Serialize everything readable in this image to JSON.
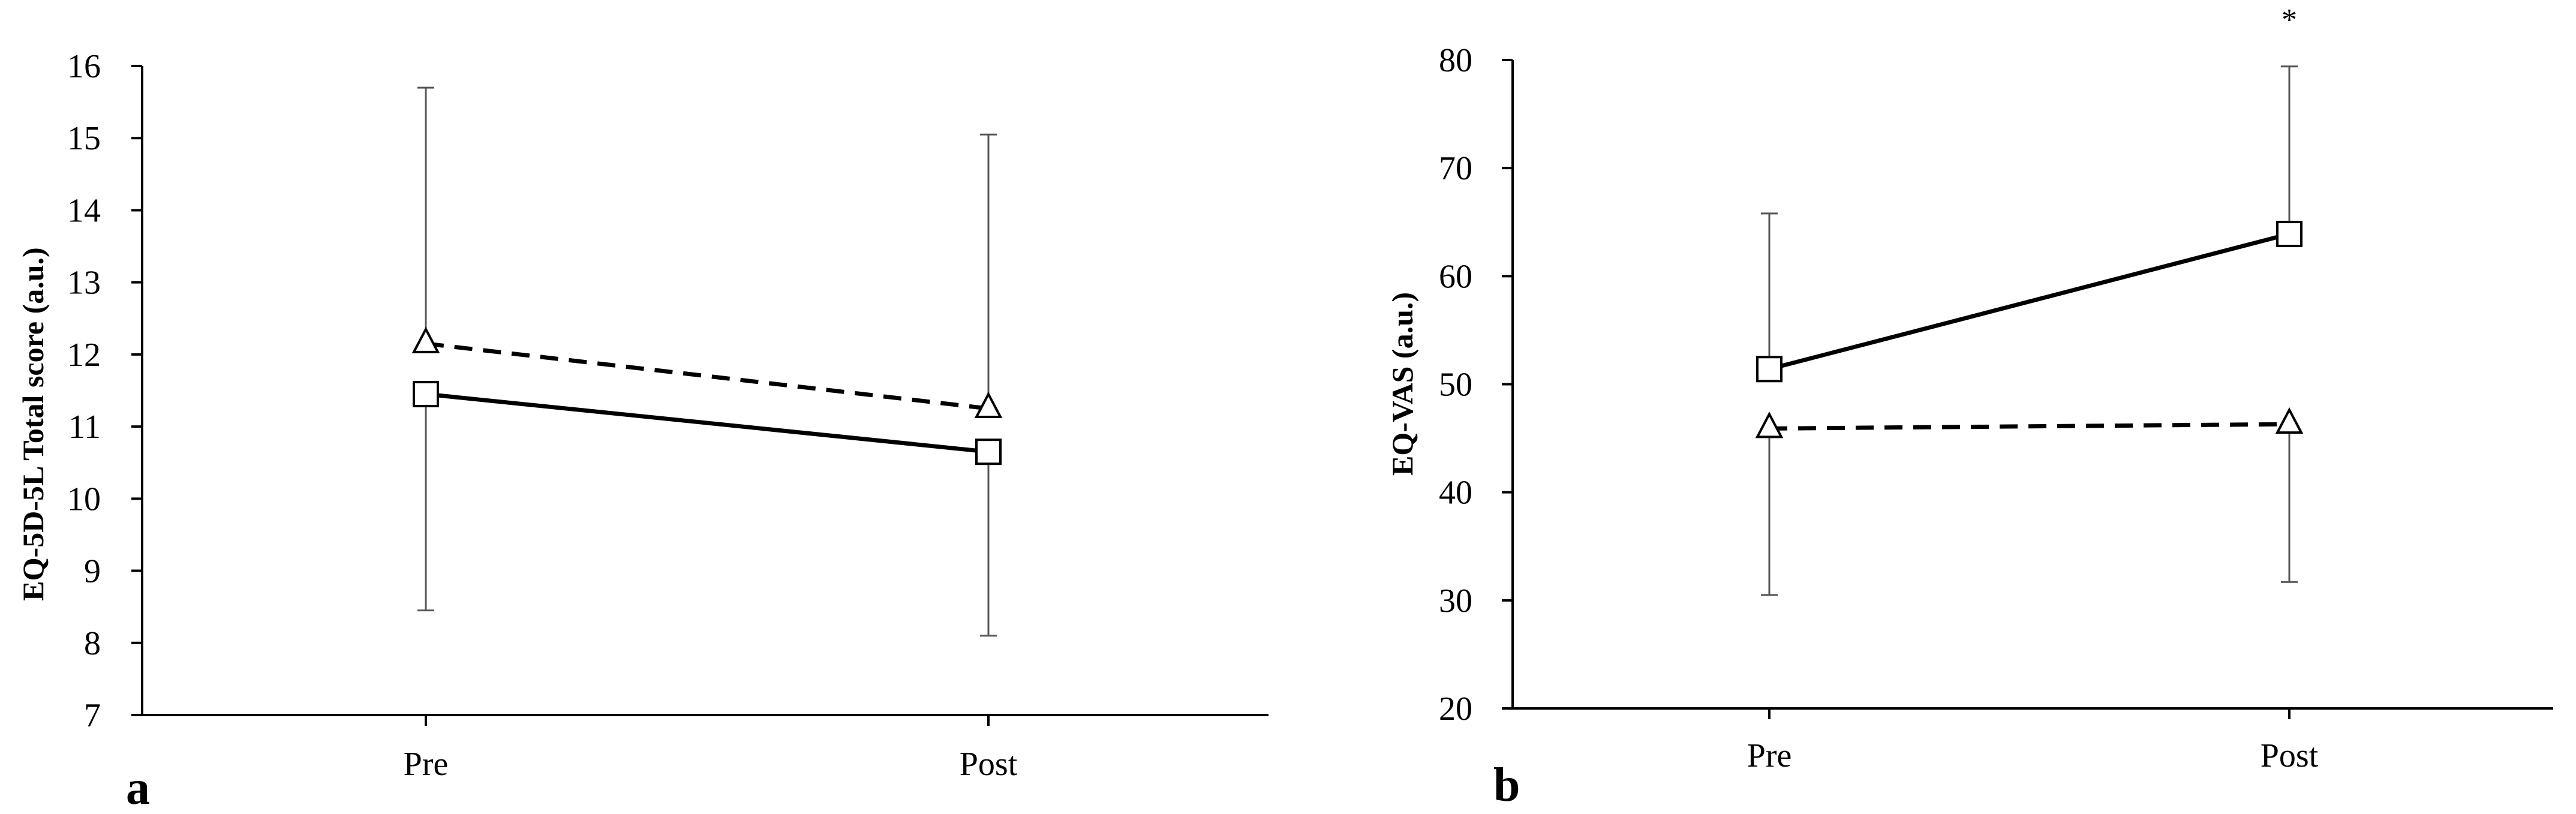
{
  "chart_data": [
    {
      "type": "line",
      "panel_label": "a",
      "ylabel": "EQ-5D-5L Total score (a.u.)",
      "xlabel": "",
      "categories": [
        "Pre",
        "Post"
      ],
      "ylim": [
        7,
        16
      ],
      "yticks": [
        7,
        8,
        9,
        10,
        11,
        12,
        13,
        14,
        15,
        16
      ],
      "grid": false,
      "legend": "none",
      "series": [
        {
          "marker": "square",
          "line": "solid",
          "values": [
            11.45,
            10.65
          ],
          "err_dir": "down",
          "err": [
            3.0,
            2.55
          ]
        },
        {
          "marker": "triangle",
          "line": "dashed",
          "values": [
            12.15,
            11.25
          ],
          "err_dir": "up",
          "err": [
            3.55,
            3.8
          ]
        }
      ],
      "annotations": []
    },
    {
      "type": "line",
      "panel_label": "b",
      "ylabel": "EQ-VAS (a.u.)",
      "xlabel": "",
      "categories": [
        "Pre",
        "Post"
      ],
      "ylim": [
        20,
        80
      ],
      "yticks": [
        20,
        30,
        40,
        50,
        60,
        70,
        80
      ],
      "grid": false,
      "legend": "none",
      "series": [
        {
          "marker": "square",
          "line": "solid",
          "values": [
            51.4,
            63.9
          ],
          "err_dir": "up",
          "err": [
            14.4,
            15.5
          ]
        },
        {
          "marker": "triangle",
          "line": "dashed",
          "values": [
            45.9,
            46.3
          ],
          "err_dir": "down",
          "err": [
            15.4,
            14.6
          ]
        }
      ],
      "annotations": [
        {
          "text": "*",
          "category": "Post"
        }
      ]
    }
  ]
}
